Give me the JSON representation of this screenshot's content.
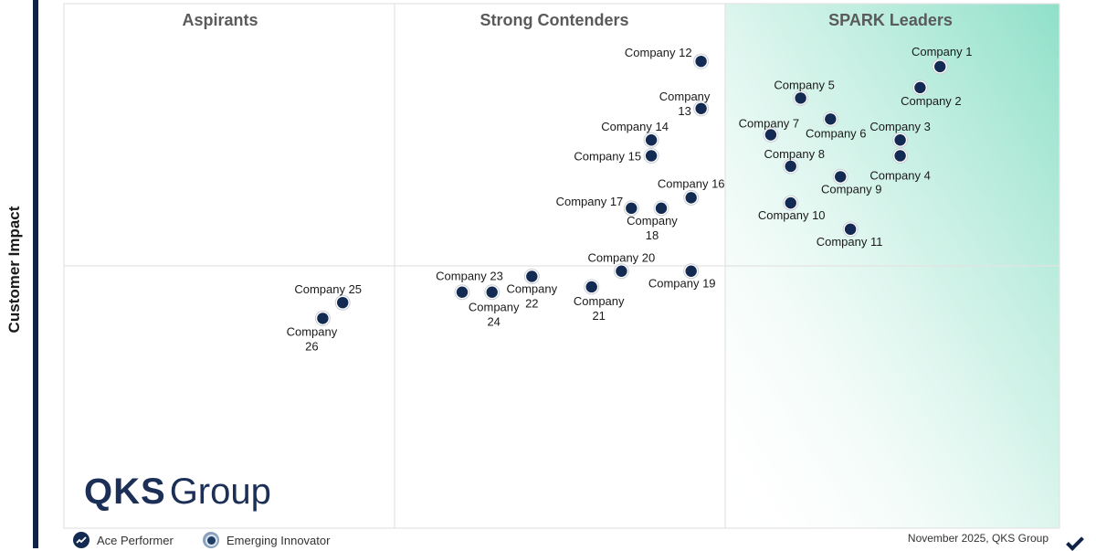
{
  "chart_data": {
    "type": "scatter",
    "title": "",
    "xlabel": "",
    "ylabel": "Customer Impact",
    "quadrants": [
      {
        "name": "Aspirants",
        "position": "top-left"
      },
      {
        "name": "Strong Contenders",
        "position": "top-center"
      },
      {
        "name": "SPARK Leaders",
        "position": "top-right"
      }
    ],
    "accent_color": "#8fe0c8",
    "marker_color": "#132a52",
    "points": [
      {
        "label": "Company 1",
        "x": 0.88,
        "y": 0.88
      },
      {
        "label": "Company 2",
        "x": 0.86,
        "y": 0.84
      },
      {
        "label": "Company 3",
        "x": 0.84,
        "y": 0.74
      },
      {
        "label": "Company 4",
        "x": 0.84,
        "y": 0.71
      },
      {
        "label": "Company 5",
        "x": 0.74,
        "y": 0.82
      },
      {
        "label": "Company 6",
        "x": 0.77,
        "y": 0.78
      },
      {
        "label": "Company 7",
        "x": 0.71,
        "y": 0.75
      },
      {
        "label": "Company 8",
        "x": 0.73,
        "y": 0.69
      },
      {
        "label": "Company 9",
        "x": 0.78,
        "y": 0.67
      },
      {
        "label": "Company 10",
        "x": 0.73,
        "y": 0.62
      },
      {
        "label": "Company 11",
        "x": 0.79,
        "y": 0.57
      },
      {
        "label": "Company 12",
        "x": 0.64,
        "y": 0.89
      },
      {
        "label": "Company 13",
        "x": 0.64,
        "y": 0.8
      },
      {
        "label": "Company 14",
        "x": 0.59,
        "y": 0.74
      },
      {
        "label": "Company 15",
        "x": 0.59,
        "y": 0.71
      },
      {
        "label": "Company 16",
        "x": 0.63,
        "y": 0.63
      },
      {
        "label": "Company 17",
        "x": 0.57,
        "y": 0.61
      },
      {
        "label": "Company 18",
        "x": 0.6,
        "y": 0.61
      },
      {
        "label": "Company 19",
        "x": 0.63,
        "y": 0.49
      },
      {
        "label": "Company 20",
        "x": 0.56,
        "y": 0.49
      },
      {
        "label": "Company 21",
        "x": 0.53,
        "y": 0.46
      },
      {
        "label": "Company 22",
        "x": 0.47,
        "y": 0.48
      },
      {
        "label": "Company 23",
        "x": 0.4,
        "y": 0.45
      },
      {
        "label": "Company 24",
        "x": 0.43,
        "y": 0.45
      },
      {
        "label": "Company 25",
        "x": 0.28,
        "y": 0.43
      },
      {
        "label": "Company 26",
        "x": 0.26,
        "y": 0.4
      }
    ]
  },
  "legend": [
    {
      "label": "Ace Performer",
      "icon": "chart-trend-icon"
    },
    {
      "label": "Emerging Innovator",
      "icon": "lightbulb-icon"
    }
  ],
  "logo": {
    "strong": "QKS",
    "light": "Group"
  },
  "footnote": "November 2025, QKS Group"
}
